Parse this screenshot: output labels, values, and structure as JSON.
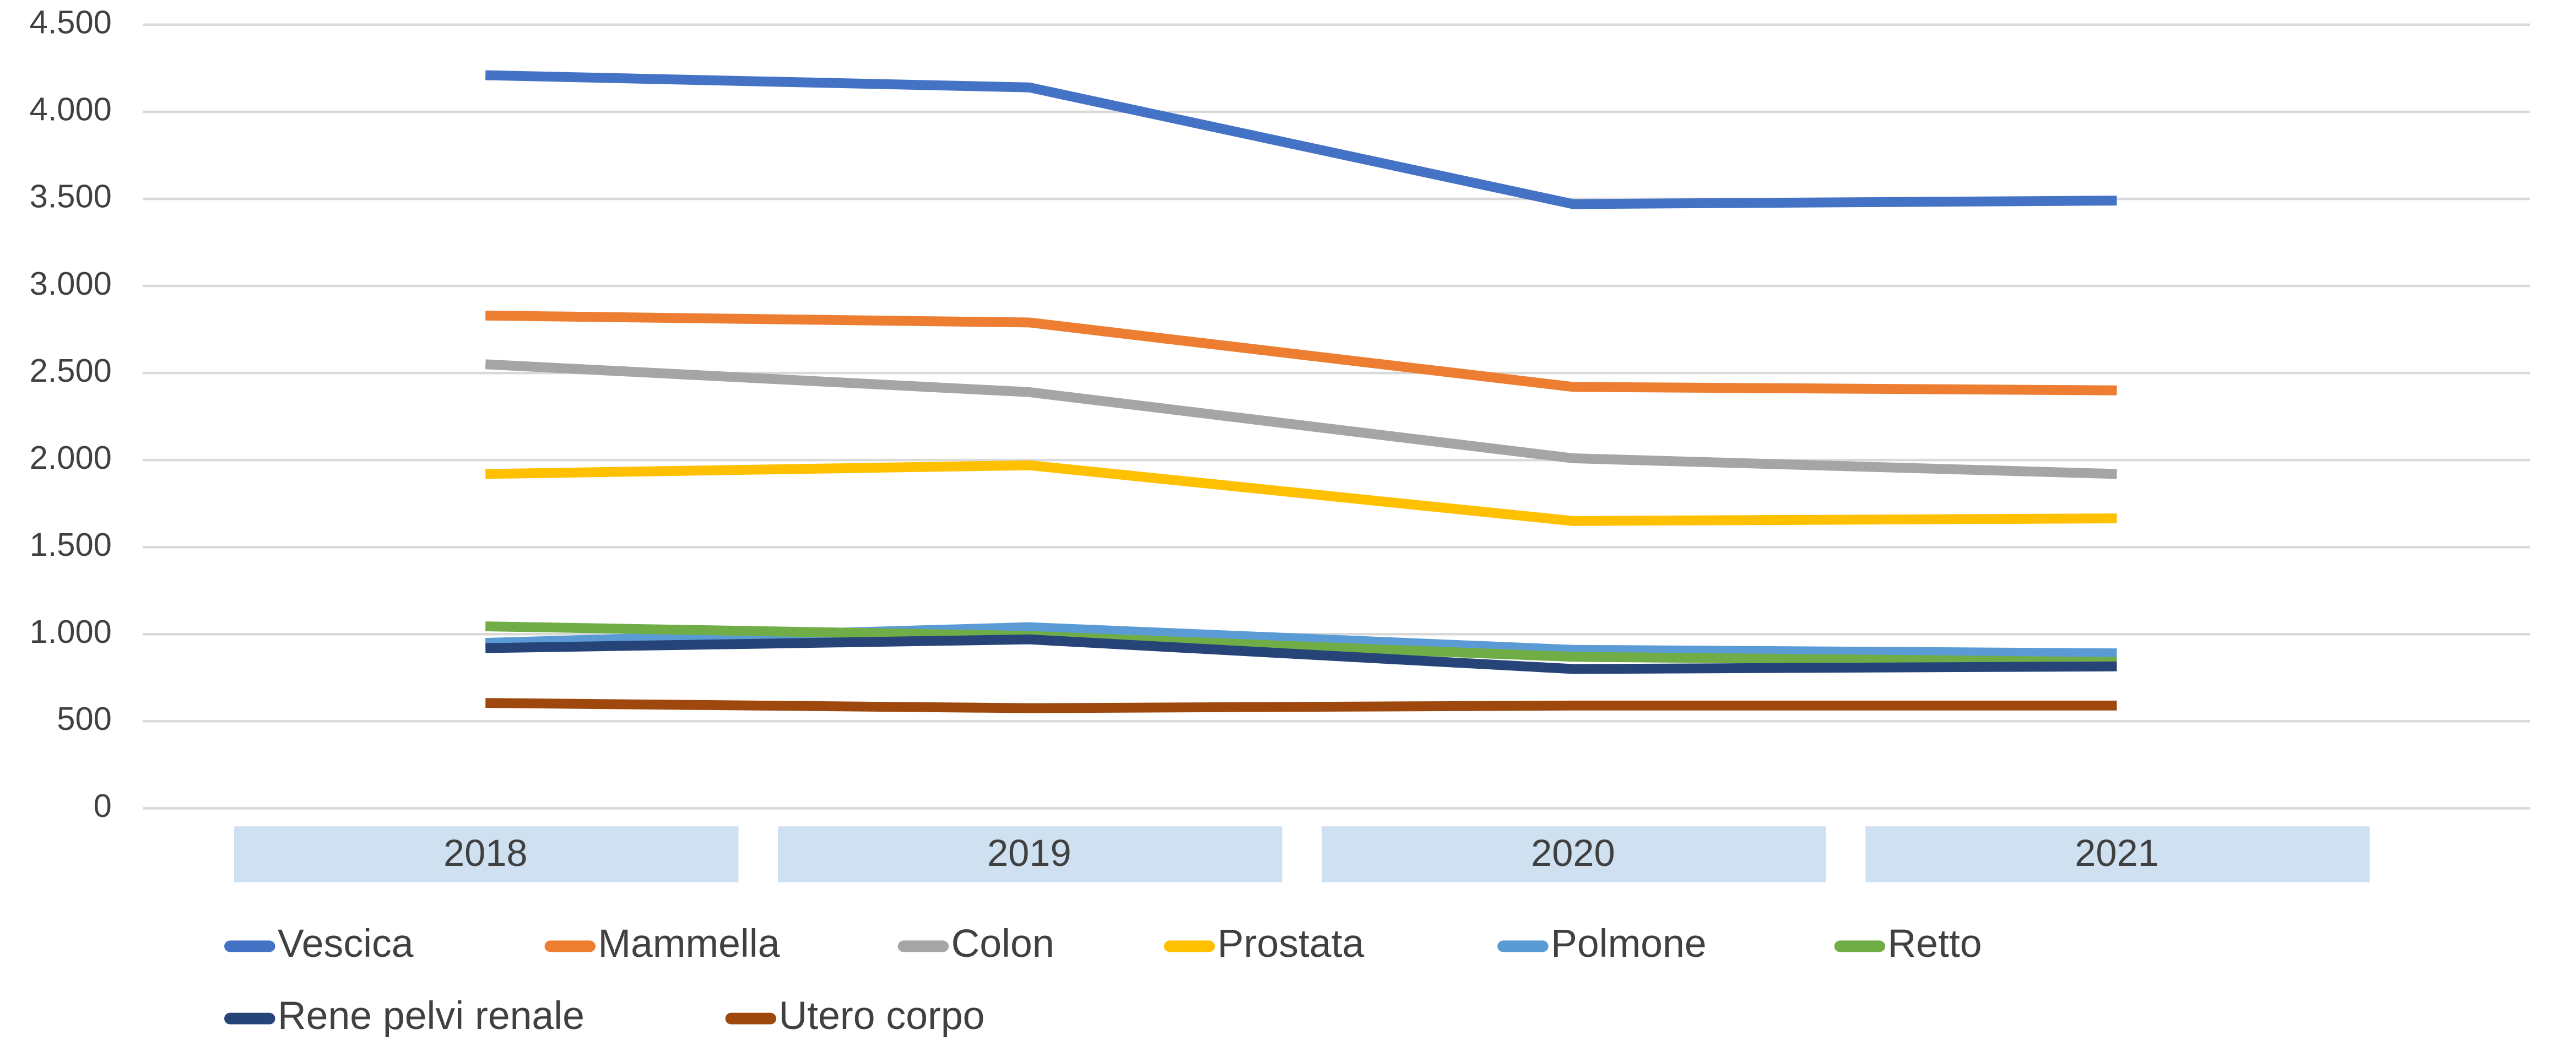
{
  "chart_data": {
    "type": "line",
    "categories": [
      "2018",
      "2019",
      "2020",
      "2021"
    ],
    "series": [
      {
        "name": "Vescica",
        "color": "#4472c4",
        "values": [
          4210,
          4140,
          3470,
          3490
        ]
      },
      {
        "name": "Mammella",
        "color": "#ed7d31",
        "values": [
          2830,
          2790,
          2420,
          2400
        ]
      },
      {
        "name": "Colon",
        "color": "#a5a5a5",
        "values": [
          2550,
          2390,
          2010,
          1920
        ]
      },
      {
        "name": "Prostata",
        "color": "#ffc000",
        "values": [
          1920,
          1970,
          1650,
          1665
        ]
      },
      {
        "name": "Polmone",
        "color": "#5b9bd5",
        "values": [
          950,
          1040,
          910,
          890
        ]
      },
      {
        "name": "Retto",
        "color": "#70ad47",
        "values": [
          1045,
          990,
          870,
          840
        ]
      },
      {
        "name": "Rene pelvi renale",
        "color": "#264478",
        "values": [
          920,
          970,
          800,
          815
        ]
      },
      {
        "name": "Utero corpo",
        "color": "#9e480e",
        "values": [
          605,
          575,
          590,
          590
        ]
      }
    ],
    "ylim": [
      0,
      4500
    ],
    "yticks": [
      0,
      500,
      {
        "value": 1000,
        "label": "1.000"
      },
      {
        "value": 1500,
        "label": "1.500"
      },
      {
        "value": 2000,
        "label": "2.000"
      },
      {
        "value": 2500,
        "label": "2.500"
      },
      {
        "value": 3000,
        "label": "3.000"
      },
      {
        "value": 3500,
        "label": "3.500"
      },
      {
        "value": 4000,
        "label": "4.000"
      },
      {
        "value": 4500,
        "label": "4.500"
      }
    ],
    "grid": true,
    "legend": "bottom"
  }
}
